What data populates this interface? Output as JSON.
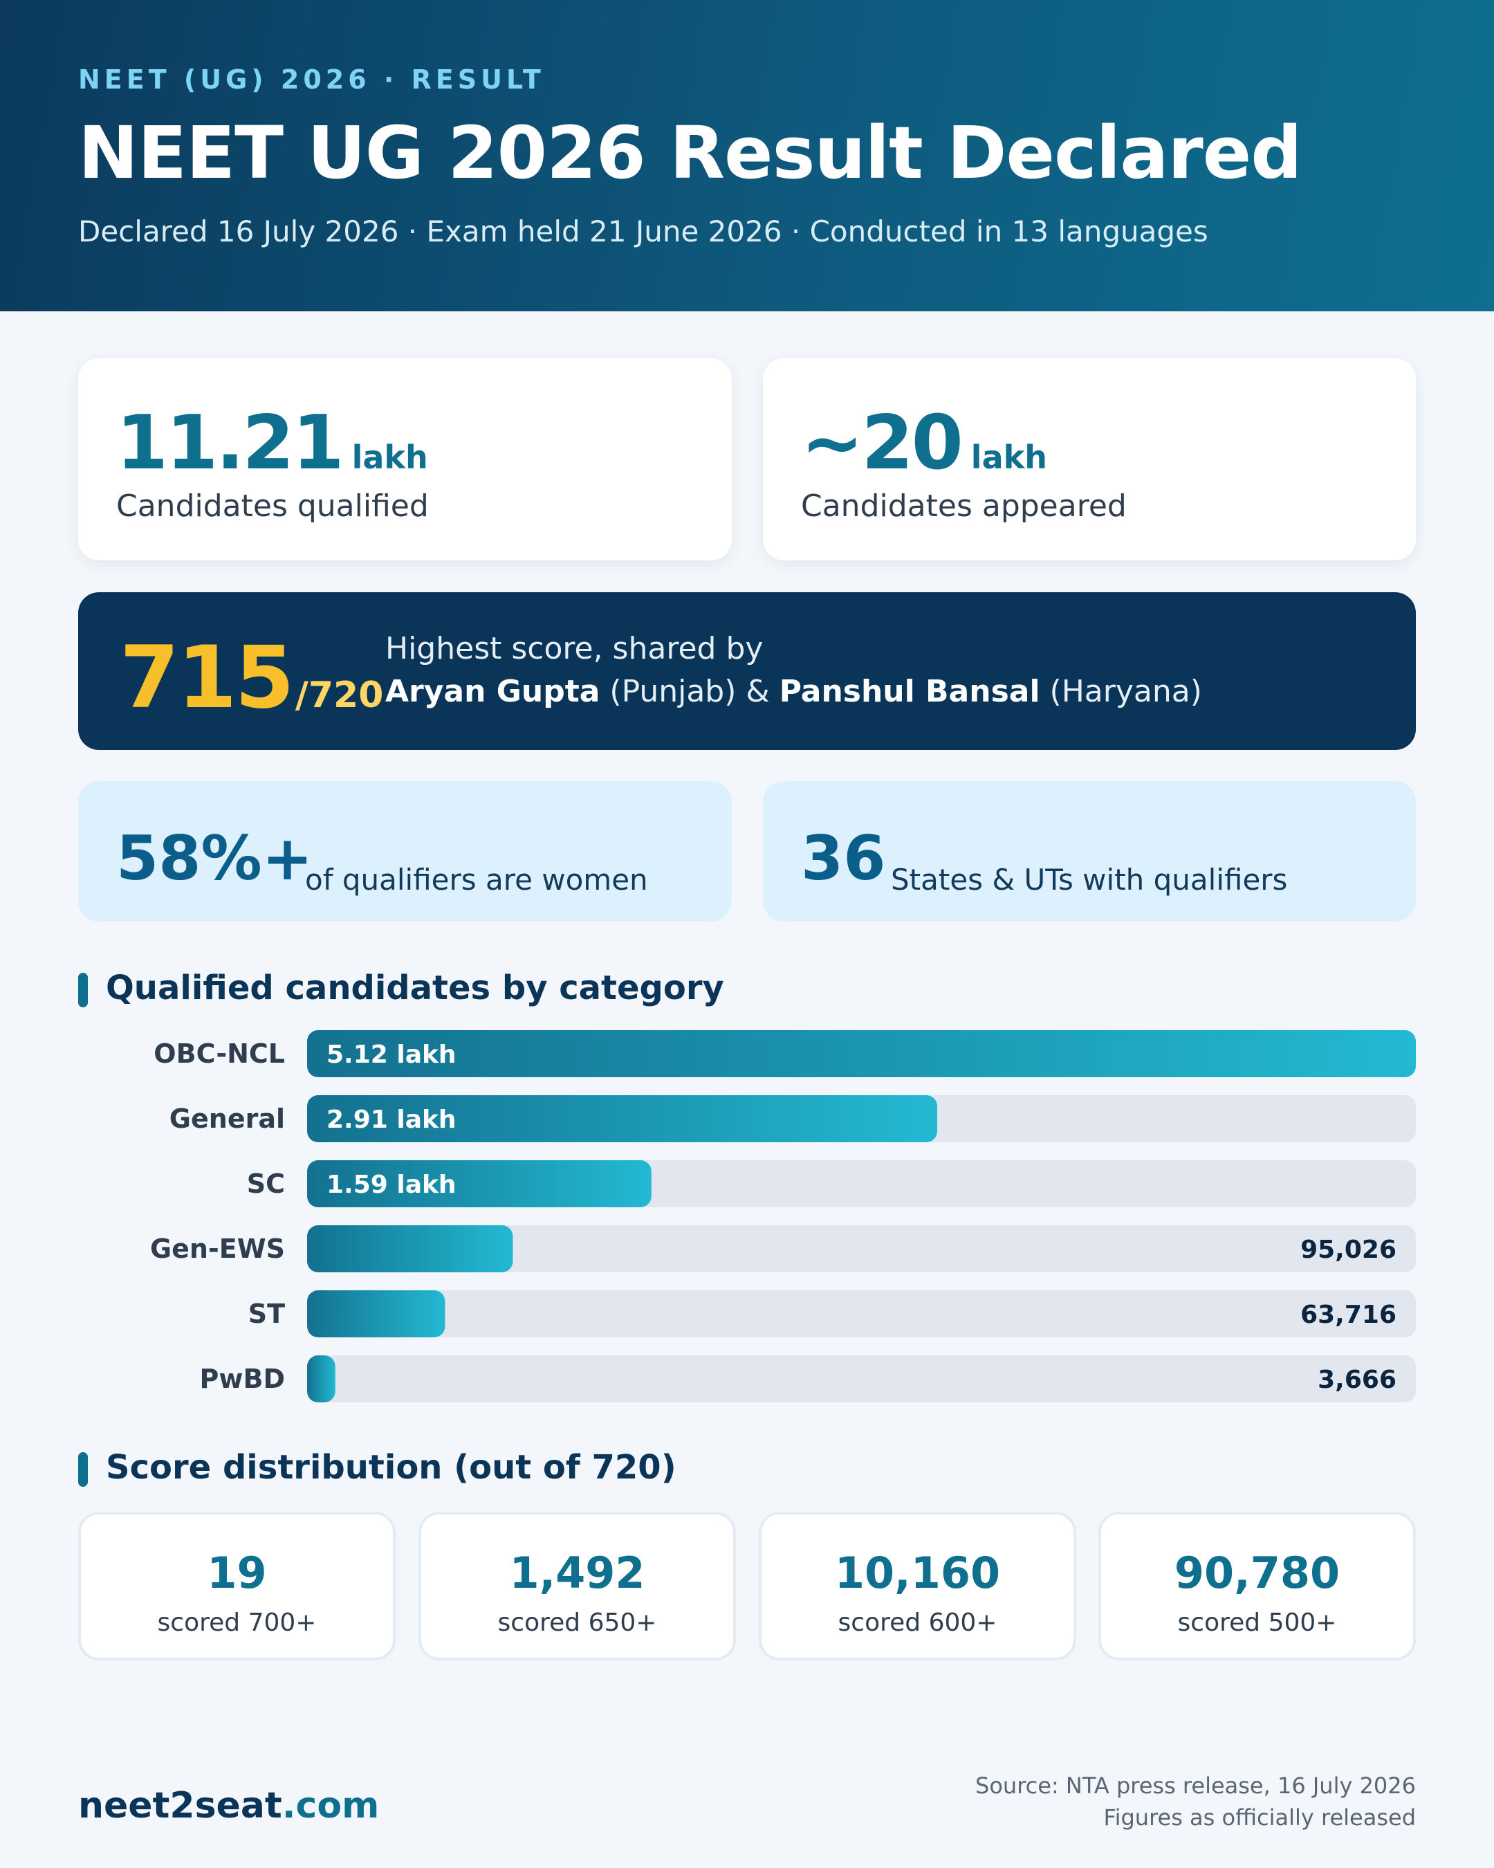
{
  "header": {
    "eyebrow": "NEET (UG) 2026 · RESULT",
    "title": "NEET UG 2026 Result Declared",
    "subtitle": "Declared 16 July 2026 · Exam held 21 June 2026 · Conducted in 13 languages"
  },
  "stats": {
    "qualified": {
      "value": "11.21",
      "unit": "lakh",
      "label": "Candidates qualified"
    },
    "appeared": {
      "value": "~20",
      "unit": "lakh",
      "label": "Candidates appeared"
    }
  },
  "topper": {
    "score": "715",
    "out_of": "/720",
    "line1": "Highest score, shared by",
    "name1": "Aryan Gupta",
    "state1": " (Punjab) & ",
    "name2": "Panshul Bansal",
    "state2": " (Haryana)"
  },
  "highlights": {
    "women": {
      "value": "58%+",
      "text": "of qualifiers are women"
    },
    "states": {
      "value": "36",
      "text": "States & UTs with qualifiers"
    }
  },
  "category_section_title": "Qualified candidates by category",
  "score_section_title": "Score distribution (out of 720)",
  "chart_data": {
    "type": "bar",
    "orientation": "horizontal",
    "title": "Qualified candidates by category",
    "categories": [
      "OBC-NCL",
      "General",
      "SC",
      "Gen-EWS",
      "ST",
      "PwBD"
    ],
    "values": [
      512000,
      291000,
      159000,
      95026,
      63716,
      3666
    ],
    "value_labels": [
      "5.12 lakh",
      "2.91 lakh",
      "1.59 lakh",
      "95,026",
      "63,716",
      "3,666"
    ],
    "xlim": [
      0,
      512000
    ],
    "colors": {
      "bar_start": "#13718f",
      "bar_end": "#23b9d2",
      "track": "#e2e7ef"
    }
  },
  "score_distribution": [
    {
      "value": "19",
      "label": "scored 700+"
    },
    {
      "value": "1,492",
      "label": "scored 650+"
    },
    {
      "value": "10,160",
      "label": "scored 600+"
    },
    {
      "value": "90,780",
      "label": "scored 500+"
    }
  ],
  "footer": {
    "brand_name": "neet2seat",
    "brand_domain": ".com",
    "source_line1": "Source: NTA press release, 16 July 2026",
    "source_line2": "Figures as officially released"
  }
}
